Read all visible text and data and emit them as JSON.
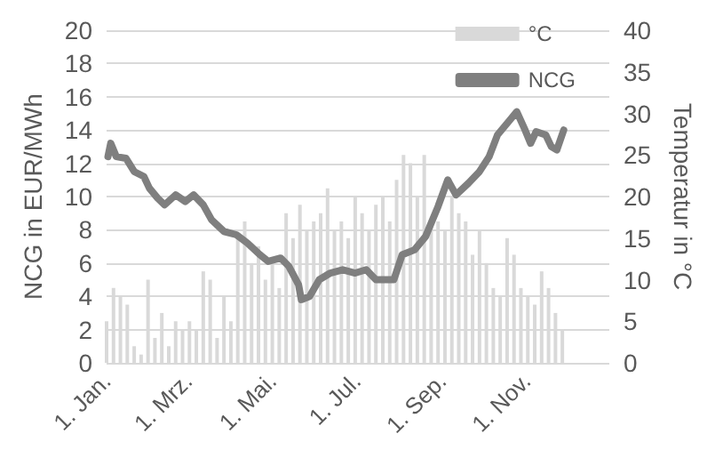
{
  "chart_data": {
    "type": "line",
    "ylabel": "NCG in EUR/MWh",
    "y2label": "Temperatur in °C",
    "xlim": [
      "--01-01",
      "--12-31"
    ],
    "xticks": [
      {
        "value": "--01-01",
        "label": "1. Jan."
      },
      {
        "value": "--03-01",
        "label": "1. Mrz."
      },
      {
        "value": "--05-01",
        "label": "1. Mai."
      },
      {
        "value": "--07-01",
        "label": "1. Jul."
      },
      {
        "value": "--09-01",
        "label": "1. Sep."
      },
      {
        "value": "--11-01",
        "label": "1. Nov."
      }
    ],
    "ylim": [
      0,
      20
    ],
    "yticks": [
      0,
      2,
      4,
      6,
      8,
      10,
      12,
      14,
      16,
      18,
      20
    ],
    "y2lim": [
      0,
      40
    ],
    "y2ticks": [
      0,
      5,
      10,
      15,
      20,
      25,
      30,
      35,
      40
    ],
    "grid": "y",
    "legend": "top right",
    "marker": "none",
    "series": [
      {
        "name": "°C",
        "type": "bar",
        "axis": "y2",
        "color": "#d9d9d9",
        "x": [
          "--01-01",
          "--01-06",
          "--01-11",
          "--01-16",
          "--01-21",
          "--01-26",
          "--01-31",
          "--02-05",
          "--02-10",
          "--02-15",
          "--02-20",
          "--02-25",
          "--03-02",
          "--03-07",
          "--03-12",
          "--03-17",
          "--03-22",
          "--03-27",
          "--04-01",
          "--04-06",
          "--04-11",
          "--04-16",
          "--04-21",
          "--04-26",
          "--05-01",
          "--05-06",
          "--05-11",
          "--05-16",
          "--05-21",
          "--05-26",
          "--05-31",
          "--06-05",
          "--06-10",
          "--06-15",
          "--06-20",
          "--06-25",
          "--06-30",
          "--07-05",
          "--07-10",
          "--07-15",
          "--07-20",
          "--07-25",
          "--07-30",
          "--08-04",
          "--08-09",
          "--08-14",
          "--08-19",
          "--08-24",
          "--08-29",
          "--09-03",
          "--09-08",
          "--09-13",
          "--09-18",
          "--09-23",
          "--09-28",
          "--10-03",
          "--10-08",
          "--10-13",
          "--10-18",
          "--10-23",
          "--10-28",
          "--11-02",
          "--11-07",
          "--11-12",
          "--11-17",
          "--11-22",
          "--11-27"
        ],
        "values": [
          5,
          9,
          8,
          7,
          2,
          1,
          10,
          3,
          6,
          2,
          5,
          4,
          5,
          4,
          11,
          10,
          3,
          8,
          5,
          15,
          17,
          12,
          14,
          10,
          12,
          9,
          18,
          15,
          19,
          16,
          17,
          18,
          21,
          16,
          17,
          15,
          20,
          18,
          16,
          19,
          20,
          17,
          22,
          25,
          24,
          20,
          25,
          17,
          17,
          16,
          20,
          18,
          17,
          13,
          16,
          12,
          9,
          8,
          15,
          13,
          9,
          8,
          7,
          11,
          9,
          6,
          4
        ]
      },
      {
        "name": "NCG",
        "type": "line",
        "color": "#7f7f7f",
        "line_style": "solid",
        "x": [
          "--01-02",
          "--01-04",
          "--01-08",
          "--01-15",
          "--01-21",
          "--01-28",
          "--02-01",
          "--02-07",
          "--02-12",
          "--02-20",
          "--02-27",
          "--03-05",
          "--03-12",
          "--03-18",
          "--03-27",
          "--04-05",
          "--04-13",
          "--04-22",
          "--04-28",
          "--05-07",
          "--05-13",
          "--05-20",
          "--05-22",
          "--05-28",
          "--06-04",
          "--06-12",
          "--06-21",
          "--06-30",
          "--07-08",
          "--07-15",
          "--07-28",
          "--08-03",
          "--08-12",
          "--08-20",
          "--08-29",
          "--09-05",
          "--09-11",
          "--09-20",
          "--09-28",
          "--10-05",
          "--10-11",
          "--10-20",
          "--10-25",
          "--10-31",
          "--11-04",
          "--11-08",
          "--11-15",
          "--11-19",
          "--11-23",
          "--11-28"
        ],
        "values": [
          12.4,
          13.2,
          12.4,
          12.3,
          11.5,
          11.2,
          10.5,
          9.9,
          9.5,
          10.1,
          9.7,
          10.1,
          9.5,
          8.6,
          7.9,
          7.7,
          7.2,
          6.5,
          6.1,
          6.3,
          5.8,
          4.7,
          3.8,
          4.0,
          5.0,
          5.4,
          5.6,
          5.4,
          5.6,
          5.0,
          5.0,
          6.5,
          6.8,
          7.6,
          9.4,
          11.0,
          10.1,
          10.8,
          11.5,
          12.4,
          13.7,
          14.6,
          15.1,
          14.0,
          13.2,
          13.9,
          13.7,
          13.0,
          12.8,
          14.0
        ]
      }
    ]
  }
}
